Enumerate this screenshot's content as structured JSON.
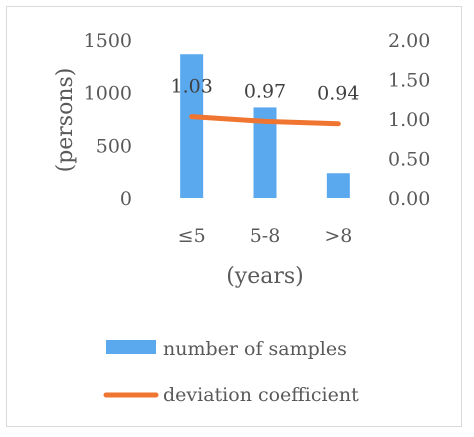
{
  "chart_data": {
    "type": "bar",
    "categories": [
      "≤5",
      "5-8",
      ">8"
    ],
    "series": [
      {
        "name": "number of samples",
        "type": "bar",
        "axis": "left",
        "values": [
          1365,
          860,
          235
        ],
        "color": "#5aa9ef"
      },
      {
        "name": "deviation coefficient",
        "type": "line",
        "axis": "right",
        "values": [
          1.03,
          0.97,
          0.94
        ],
        "labels": [
          "1.03",
          "0.97",
          "0.94"
        ],
        "color": "#ef7530"
      }
    ],
    "xlabel": "(years)",
    "ylabel": "(persons)",
    "ylim": [
      0,
      1500
    ],
    "y2lim": [
      0,
      2
    ],
    "yticks": [
      "0",
      "500",
      "1000",
      "1500"
    ],
    "y2ticks": [
      "0.00",
      "0.50",
      "1.00",
      "1.50",
      "2.00"
    ],
    "legend_position": "bottom",
    "grid": false
  }
}
